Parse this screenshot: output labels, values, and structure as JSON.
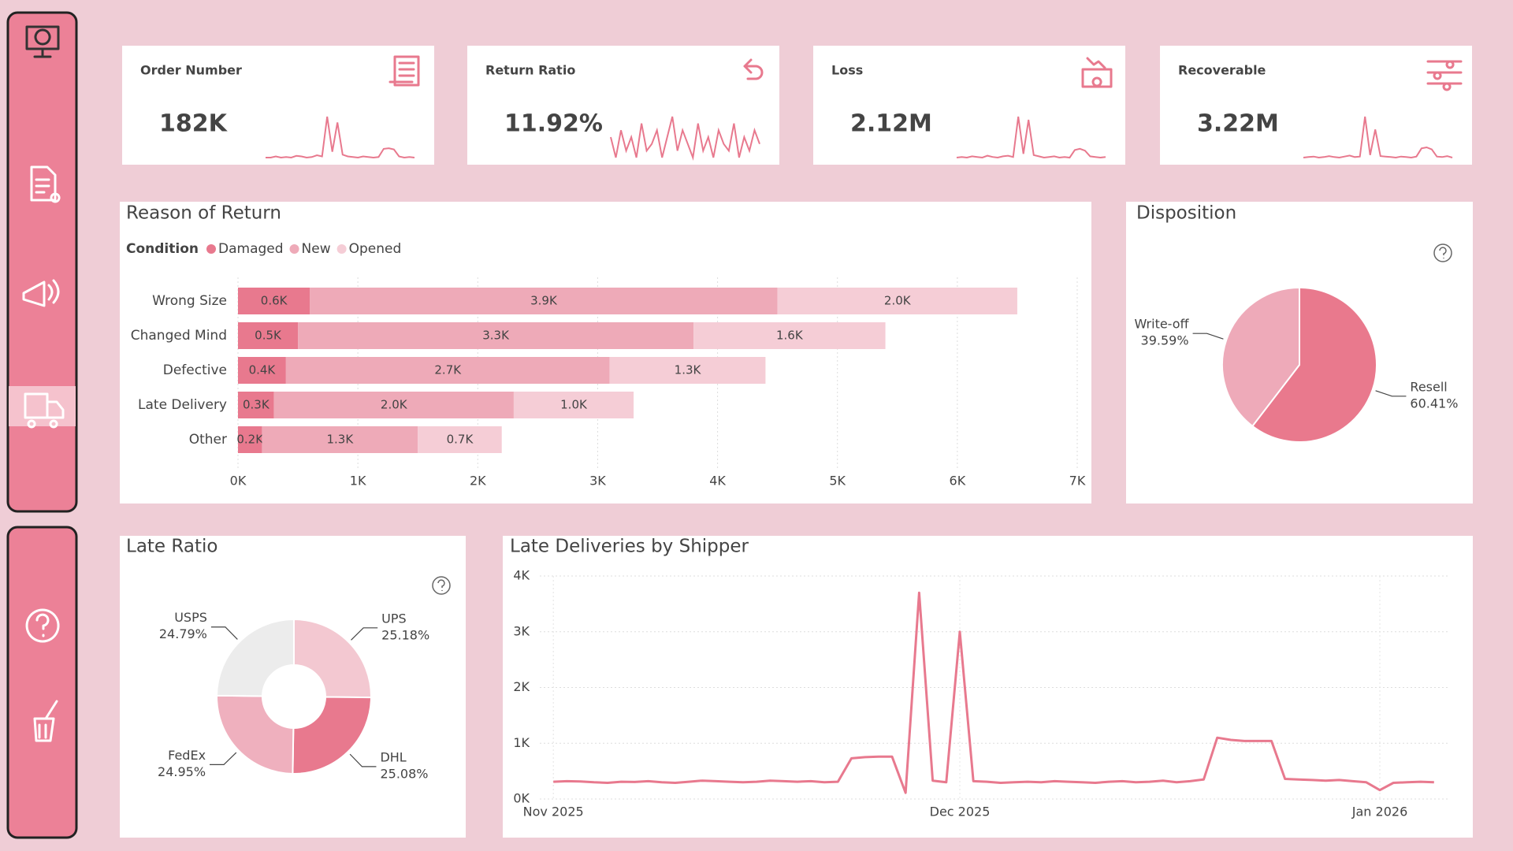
{
  "kpis": [
    {
      "title": "Order Number",
      "value": "182K",
      "trend": [
        2,
        2,
        2.2,
        2,
        2.1,
        2,
        2.3,
        2.2,
        2,
        2.1,
        2.4,
        2.2,
        9,
        3,
        8,
        2.5,
        2.2,
        2.1,
        2,
        2.2,
        2.1,
        2,
        2.1,
        3.5,
        3.6,
        3.4,
        2.2,
        2,
        2.1,
        2
      ]
    },
    {
      "title": "Return Ratio",
      "value": "11.92%",
      "trend": [
        6,
        3,
        7,
        4,
        6,
        3,
        8,
        4,
        5,
        7,
        3,
        6,
        9,
        4,
        7,
        5,
        3,
        8,
        4,
        6,
        3,
        7,
        5,
        4,
        8,
        3,
        6,
        4,
        7,
        5
      ]
    },
    {
      "title": "Loss",
      "value": "2.12M",
      "trend": [
        2,
        2.1,
        2,
        2.2,
        2.1,
        2,
        2.3,
        2.1,
        2,
        2.2,
        2.3,
        2.1,
        8.5,
        2.6,
        8,
        2.4,
        2.2,
        2,
        2.1,
        2.2,
        2,
        2.1,
        2,
        3.2,
        3.4,
        3.1,
        2.2,
        2.1,
        2,
        2.1
      ]
    },
    {
      "title": "Recoverable",
      "value": "3.22M",
      "trend": [
        2,
        2.1,
        2.2,
        2,
        2.1,
        2.3,
        2.1,
        2,
        2.2,
        2.4,
        2.1,
        2.2,
        10,
        2.5,
        7.5,
        2.3,
        2.2,
        2.1,
        2,
        2.2,
        2.1,
        2,
        2.2,
        3.8,
        4,
        3.6,
        2.2,
        2.1,
        2.3,
        2
      ]
    }
  ],
  "chart_data": [
    {
      "type": "bar",
      "orientation": "horizontal",
      "stacked": true,
      "title": "Reason of Return",
      "legend_title": "Condition",
      "categories": [
        "Wrong Size",
        "Changed Mind",
        "Defective",
        "Late Delivery",
        "Other"
      ],
      "series": [
        {
          "name": "Damaged",
          "color": "#e8798e",
          "values": [
            600,
            500,
            400,
            300,
            200
          ],
          "value_labels": [
            "0.6K",
            "0.5K",
            "0.4K",
            "0.3K",
            "0.2K"
          ]
        },
        {
          "name": "New",
          "color": "#eeaab8",
          "values": [
            3900,
            3300,
            2700,
            2000,
            1300
          ],
          "value_labels": [
            "3.9K",
            "3.3K",
            "2.7K",
            "2.0K",
            "1.3K"
          ]
        },
        {
          "name": "Opened",
          "color": "#f5cdd6",
          "values": [
            2000,
            1600,
            1300,
            1000,
            700
          ],
          "value_labels": [
            "2.0K",
            "1.6K",
            "1.3K",
            "1.0K",
            "0.7K"
          ]
        }
      ],
      "xlim": [
        0,
        7000
      ],
      "xticks": [
        {
          "value": 0,
          "label": "0K"
        },
        {
          "value": 1000,
          "label": "1K"
        },
        {
          "value": 2000,
          "label": "2K"
        },
        {
          "value": 3000,
          "label": "3K"
        },
        {
          "value": 4000,
          "label": "4K"
        },
        {
          "value": 5000,
          "label": "5K"
        },
        {
          "value": 6000,
          "label": "6K"
        },
        {
          "value": 7000,
          "label": "7K"
        }
      ],
      "grid": true
    },
    {
      "type": "pie",
      "title": "Disposition",
      "categories": [
        "Resell",
        "Write-off"
      ],
      "values": [
        60.41,
        39.59
      ],
      "value_labels": [
        "60.41%",
        "39.59%"
      ],
      "colors": [
        "#e9798d",
        "#eeaab9"
      ]
    },
    {
      "type": "donut",
      "title": "Late Ratio",
      "categories": [
        "UPS",
        "DHL",
        "FedEx",
        "USPS"
      ],
      "values": [
        25.18,
        25.08,
        24.95,
        24.79
      ],
      "value_labels": [
        "25.18%",
        "25.08%",
        "24.95%",
        "24.79%"
      ],
      "colors": [
        "#f3c8d1",
        "#e8798e",
        "#efb0be",
        "#ececec"
      ]
    },
    {
      "type": "line",
      "title": "Late Deliveries by Shipper",
      "x": [
        0,
        1,
        2,
        3,
        4,
        5,
        6,
        7,
        8,
        9,
        10,
        11,
        12,
        13,
        14,
        15,
        16,
        17,
        18,
        19,
        20,
        21,
        22,
        23,
        24,
        25,
        26,
        27,
        28,
        29,
        30,
        31,
        32,
        33,
        34,
        35,
        36,
        37,
        38,
        39,
        40,
        41,
        42,
        43,
        44,
        45,
        46,
        47,
        48,
        49,
        50,
        51,
        52,
        53,
        54,
        55,
        56,
        57,
        58,
        59,
        60,
        61,
        62,
        63,
        64,
        65
      ],
      "series": [
        {
          "color": "#e8798e",
          "values": [
            310,
            320,
            315,
            300,
            290,
            310,
            305,
            320,
            300,
            290,
            310,
            330,
            320,
            310,
            300,
            310,
            330,
            320,
            310,
            320,
            300,
            310,
            730,
            750,
            760,
            760,
            110,
            3700,
            330,
            300,
            3000,
            320,
            310,
            290,
            300,
            310,
            300,
            320,
            310,
            300,
            290,
            310,
            320,
            300,
            310,
            330,
            300,
            320,
            350,
            1100,
            1060,
            1040,
            1040,
            1040,
            360,
            350,
            340,
            330,
            340,
            320,
            300,
            160,
            290,
            300,
            310,
            300
          ]
        }
      ],
      "xlim": [
        -1,
        66
      ],
      "xticks": [
        {
          "value": 0,
          "label": "Nov 2025"
        },
        {
          "value": 30,
          "label": "Dec 2025"
        },
        {
          "value": 61,
          "label": "Jan 2026"
        }
      ],
      "ylim": [
        0,
        4000
      ],
      "yticks": [
        {
          "value": 0,
          "label": "0K"
        },
        {
          "value": 1000,
          "label": "1K"
        },
        {
          "value": 2000,
          "label": "2K"
        },
        {
          "value": 3000,
          "label": "3K"
        },
        {
          "value": 4000,
          "label": "4K"
        }
      ],
      "grid": true
    }
  ]
}
